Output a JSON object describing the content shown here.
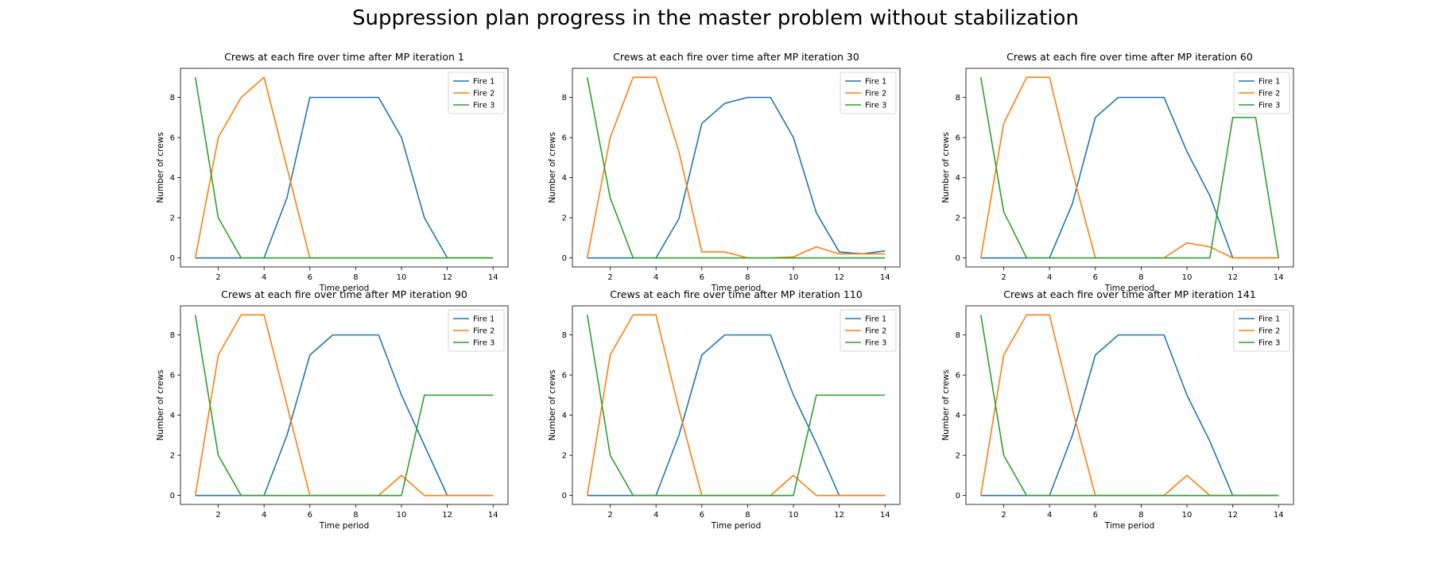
{
  "figure": {
    "title": "Suppression plan progress in the master problem without stabilization"
  },
  "colors": {
    "fire1": "#1f77b4",
    "fire2": "#ff7f0e",
    "fire3": "#2ca02c"
  },
  "chart_data": [
    {
      "type": "line",
      "title": "Crews at each fire over time after MP iteration 1",
      "xlabel": "Time period",
      "ylabel": "Number of crews",
      "xlim": [
        0.35,
        14.65
      ],
      "ylim": [
        -0.45,
        9.45
      ],
      "xticks": [
        2,
        4,
        6,
        8,
        10,
        12,
        14
      ],
      "yticks": [
        0,
        2,
        4,
        6,
        8
      ],
      "legend": "top-right",
      "x": [
        1,
        2,
        3,
        4,
        5,
        6,
        7,
        8,
        9,
        10,
        11,
        12,
        13,
        14
      ],
      "series": [
        {
          "name": "Fire 1",
          "values": [
            0,
            0,
            0,
            0,
            3,
            8,
            8,
            8,
            8,
            6,
            2,
            0,
            0,
            0
          ]
        },
        {
          "name": "Fire 2",
          "values": [
            0,
            6,
            8,
            9,
            4.5,
            0,
            0,
            0,
            0,
            0,
            0,
            0,
            0,
            0
          ]
        },
        {
          "name": "Fire 3",
          "values": [
            9,
            2,
            0,
            0,
            0,
            0,
            0,
            0,
            0,
            0,
            0,
            0,
            0,
            0
          ]
        }
      ]
    },
    {
      "type": "line",
      "title": "Crews at each fire over time after MP iteration 30",
      "xlabel": "Time period",
      "ylabel": "Number of crews",
      "xlim": [
        0.35,
        14.65
      ],
      "ylim": [
        -0.45,
        9.45
      ],
      "xticks": [
        2,
        4,
        6,
        8,
        10,
        12,
        14
      ],
      "yticks": [
        0,
        2,
        4,
        6,
        8
      ],
      "legend": "top-right",
      "x": [
        1,
        2,
        3,
        4,
        5,
        6,
        7,
        8,
        9,
        10,
        11,
        12,
        13,
        14
      ],
      "series": [
        {
          "name": "Fire 1",
          "values": [
            0,
            0,
            0,
            0,
            1.95,
            6.7,
            7.7,
            8,
            8,
            6,
            2.25,
            0.3,
            0.2,
            0.35
          ]
        },
        {
          "name": "Fire 2",
          "values": [
            0,
            6,
            9,
            9,
            5.3,
            0.3,
            0.3,
            0,
            0,
            0.05,
            0.55,
            0.2,
            0.2,
            0.2
          ]
        },
        {
          "name": "Fire 3",
          "values": [
            9,
            3,
            0,
            0,
            0,
            0,
            0,
            0,
            0,
            0,
            0,
            0,
            0,
            0
          ]
        }
      ]
    },
    {
      "type": "line",
      "title": "Crews at each fire over time after MP iteration 60",
      "xlabel": "Time period",
      "ylabel": "Number of crews",
      "xlim": [
        0.35,
        14.65
      ],
      "ylim": [
        -0.45,
        9.45
      ],
      "xticks": [
        2,
        4,
        6,
        8,
        10,
        12,
        14
      ],
      "yticks": [
        0,
        2,
        4,
        6,
        8
      ],
      "legend": "top-right",
      "x": [
        1,
        2,
        3,
        4,
        5,
        6,
        7,
        8,
        9,
        10,
        11,
        12,
        13,
        14
      ],
      "series": [
        {
          "name": "Fire 1",
          "values": [
            0,
            0,
            0,
            0,
            2.7,
            7,
            8,
            8,
            8,
            5.3,
            3.1,
            0,
            0,
            0
          ]
        },
        {
          "name": "Fire 2",
          "values": [
            0,
            6.7,
            9,
            9,
            4.3,
            0,
            0,
            0,
            0,
            0.75,
            0.55,
            0,
            0,
            0
          ]
        },
        {
          "name": "Fire 3",
          "values": [
            9,
            2.3,
            0,
            0,
            0,
            0,
            0,
            0,
            0,
            0,
            0,
            7,
            7,
            0
          ]
        }
      ]
    },
    {
      "type": "line",
      "title": "Crews at each fire over time after MP iteration 90",
      "xlabel": "Time period",
      "ylabel": "Number of crews",
      "xlim": [
        0.35,
        14.65
      ],
      "ylim": [
        -0.45,
        9.45
      ],
      "xticks": [
        2,
        4,
        6,
        8,
        10,
        12,
        14
      ],
      "yticks": [
        0,
        2,
        4,
        6,
        8
      ],
      "legend": "top-right",
      "x": [
        1,
        2,
        3,
        4,
        5,
        6,
        7,
        8,
        9,
        10,
        11,
        12,
        13,
        14
      ],
      "series": [
        {
          "name": "Fire 1",
          "values": [
            0,
            0,
            0,
            0,
            3,
            7,
            8,
            8,
            8,
            5,
            2.5,
            0,
            0,
            0
          ]
        },
        {
          "name": "Fire 2",
          "values": [
            0,
            7,
            9,
            9,
            4.5,
            0,
            0,
            0,
            0,
            1,
            0,
            0,
            0,
            0
          ]
        },
        {
          "name": "Fire 3",
          "values": [
            9,
            2,
            0,
            0,
            0,
            0,
            0,
            0,
            0,
            0,
            5,
            5,
            5,
            5
          ]
        }
      ]
    },
    {
      "type": "line",
      "title": "Crews at each fire over time after MP iteration 110",
      "xlabel": "Time period",
      "ylabel": "Number of crews",
      "xlim": [
        0.35,
        14.65
      ],
      "ylim": [
        -0.45,
        9.45
      ],
      "xticks": [
        2,
        4,
        6,
        8,
        10,
        12,
        14
      ],
      "yticks": [
        0,
        2,
        4,
        6,
        8
      ],
      "legend": "top-right",
      "x": [
        1,
        2,
        3,
        4,
        5,
        6,
        7,
        8,
        9,
        10,
        11,
        12,
        13,
        14
      ],
      "series": [
        {
          "name": "Fire 1",
          "values": [
            0,
            0,
            0,
            0,
            3,
            7,
            8,
            8,
            8,
            5,
            2.6,
            0,
            0,
            0
          ]
        },
        {
          "name": "Fire 2",
          "values": [
            0,
            7,
            9,
            9,
            4.3,
            0,
            0,
            0,
            0,
            1,
            0,
            0,
            0,
            0
          ]
        },
        {
          "name": "Fire 3",
          "values": [
            9,
            2,
            0,
            0,
            0,
            0,
            0,
            0,
            0,
            0,
            5,
            5,
            5,
            5
          ]
        }
      ]
    },
    {
      "type": "line",
      "title": "Crews at each fire over time after MP iteration 141",
      "xlabel": "Time period",
      "ylabel": "Number of crews",
      "xlim": [
        0.35,
        14.65
      ],
      "ylim": [
        -0.45,
        9.45
      ],
      "xticks": [
        2,
        4,
        6,
        8,
        10,
        12,
        14
      ],
      "yticks": [
        0,
        2,
        4,
        6,
        8
      ],
      "legend": "top-right",
      "x": [
        1,
        2,
        3,
        4,
        5,
        6,
        7,
        8,
        9,
        10,
        11,
        12,
        13,
        14
      ],
      "series": [
        {
          "name": "Fire 1",
          "values": [
            0,
            0,
            0,
            0,
            3,
            7,
            8,
            8,
            8,
            5,
            2.7,
            0,
            0,
            0
          ]
        },
        {
          "name": "Fire 2",
          "values": [
            0,
            7,
            9,
            9,
            4.3,
            0,
            0,
            0,
            0,
            1,
            0,
            0,
            0,
            0
          ]
        },
        {
          "name": "Fire 3",
          "values": [
            9,
            2,
            0,
            0,
            0,
            0,
            0,
            0,
            0,
            0,
            0,
            0,
            0,
            0
          ]
        }
      ]
    }
  ]
}
